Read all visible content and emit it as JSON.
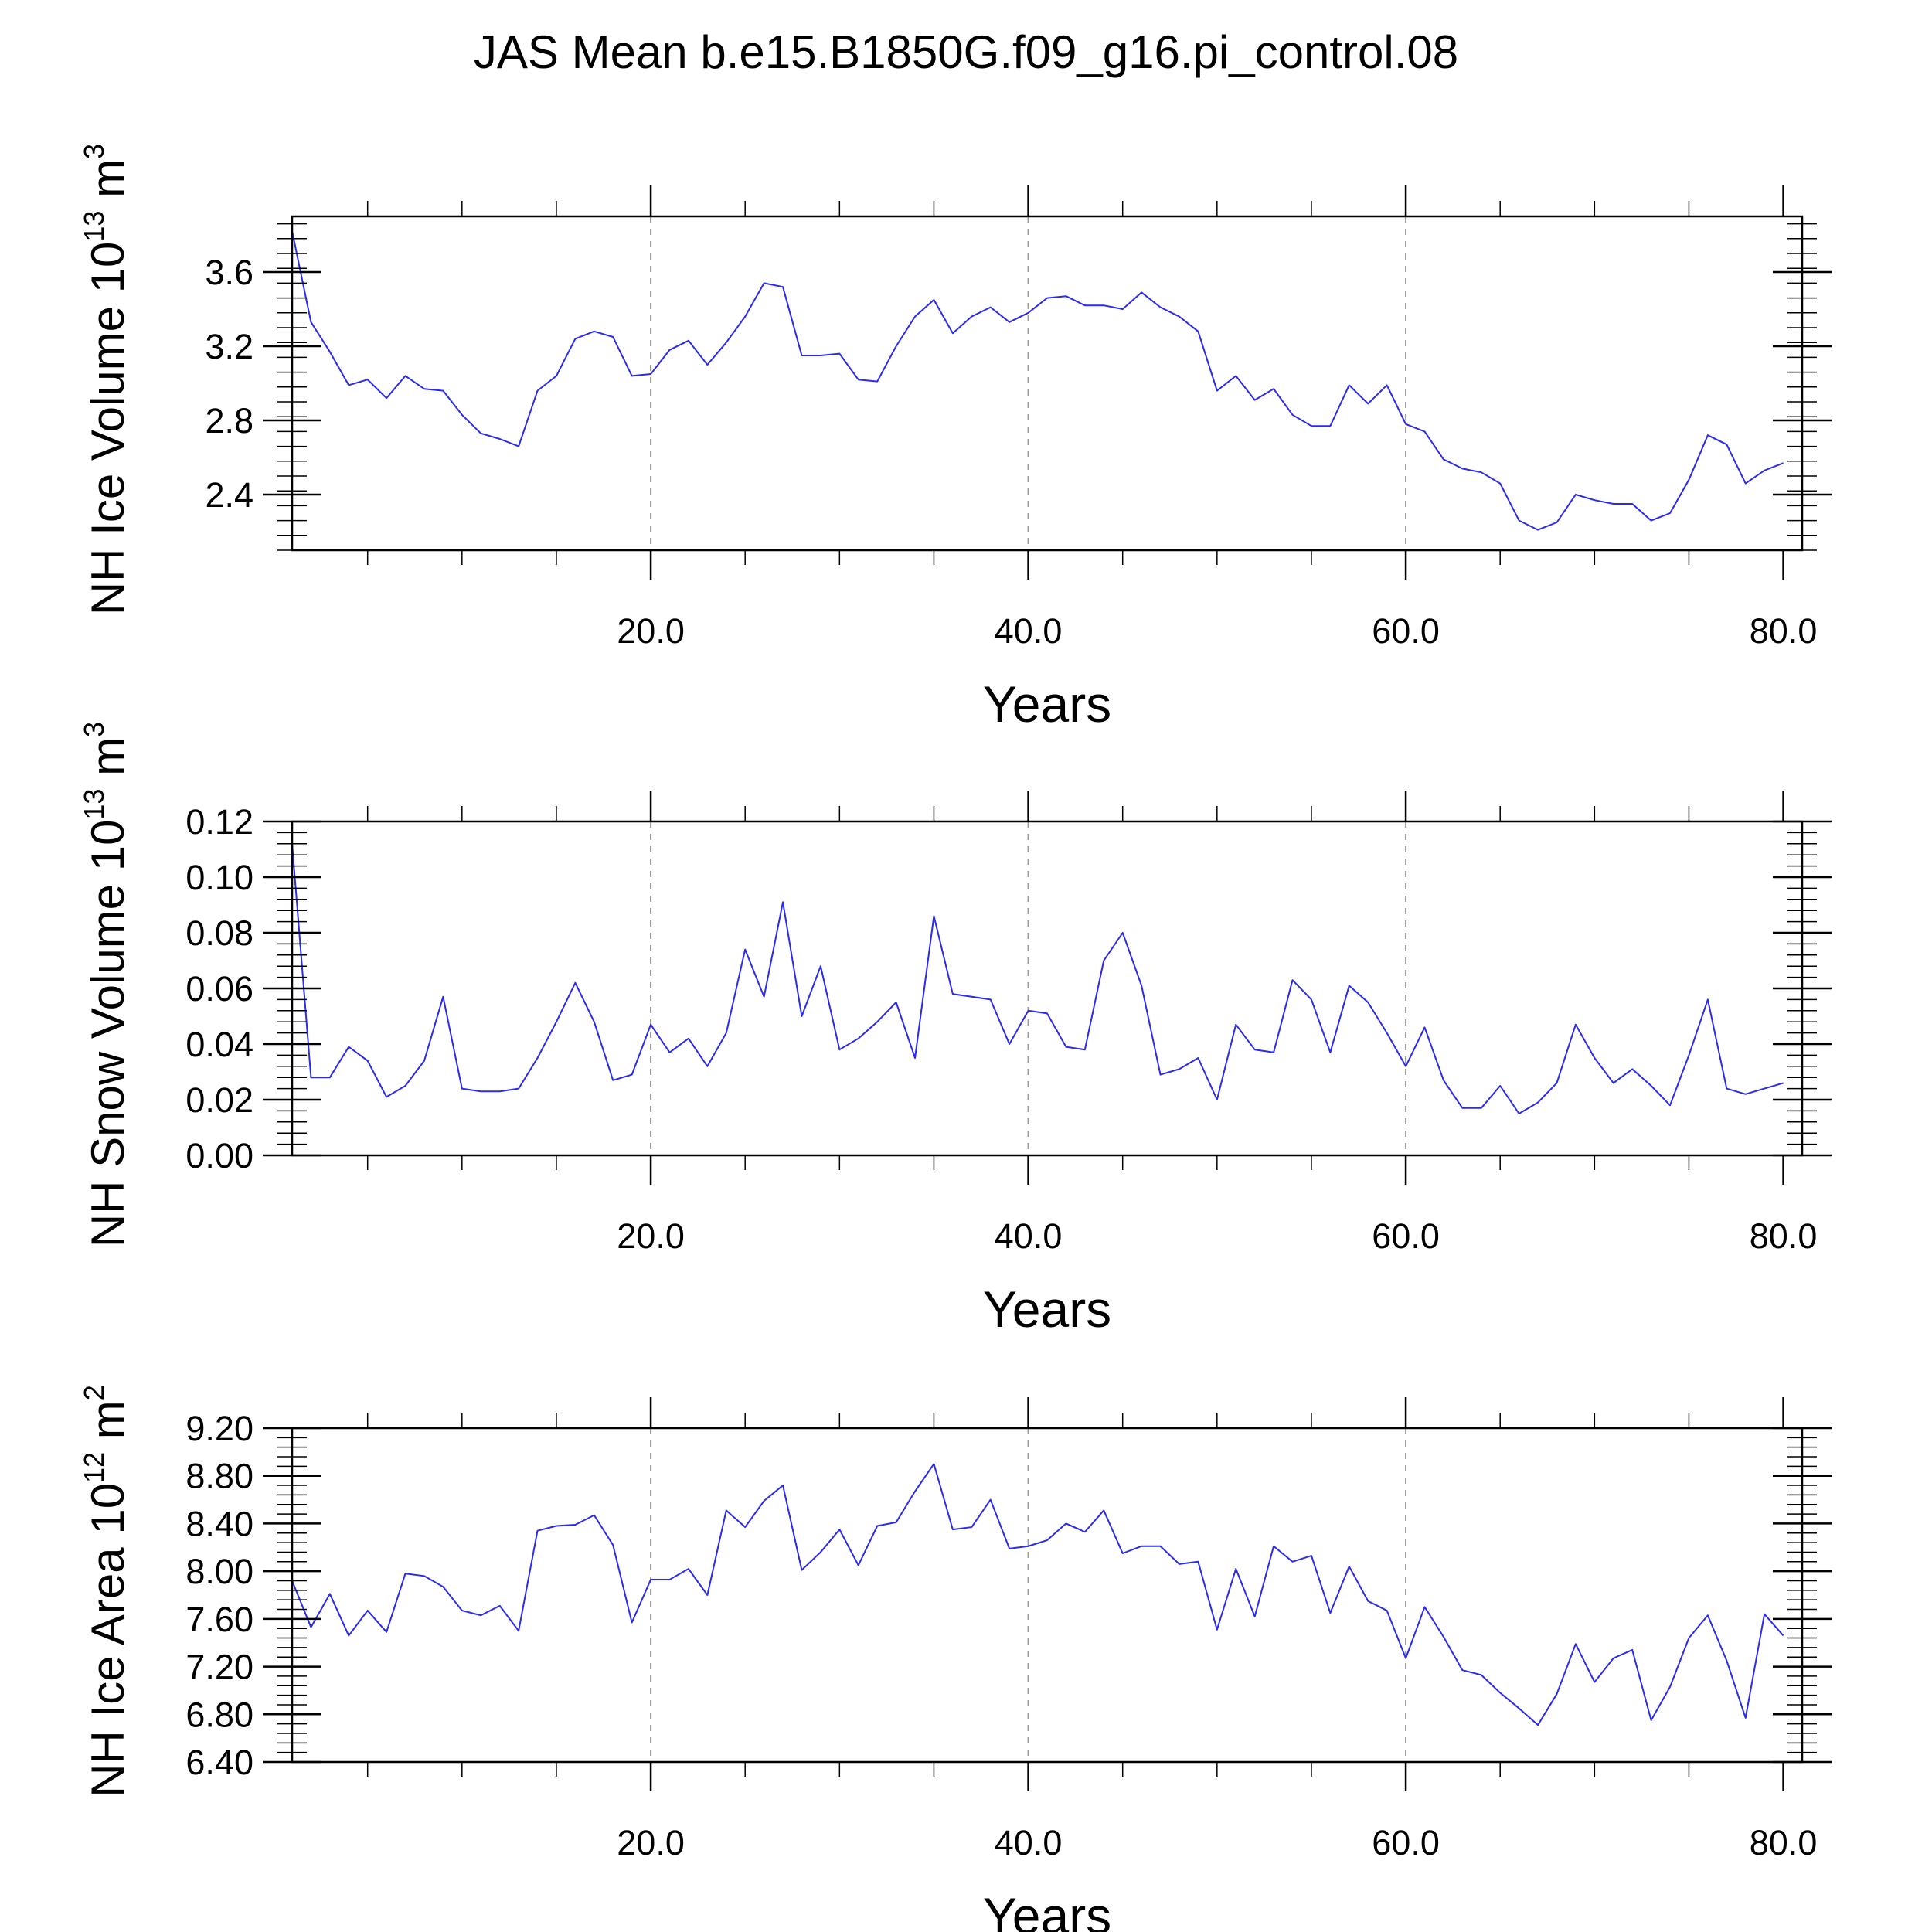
{
  "title": "JAS Mean b.e15.B1850G.f09_g16.pi_control.08",
  "colors": {
    "line": "#2a2af0",
    "axes": "#000000",
    "grid": "#9a9a9a",
    "background": "#ffffff"
  },
  "chart_data": [
    {
      "type": "line",
      "id": "ice-volume",
      "ylabel_main": "NH Ice Volume 10",
      "ylabel_sup": "13",
      "ylabel_unit": "m",
      "ylabel_unit_sup": "3",
      "xlabel": "Years",
      "xlim": [
        1,
        81
      ],
      "ylim": [
        2.1,
        3.9
      ],
      "xticks": [
        20,
        40,
        60,
        80
      ],
      "xtick_labels": [
        "20.0",
        "40.0",
        "60.0",
        "80.0"
      ],
      "yticks": [
        2.4,
        2.8,
        3.2,
        3.6
      ],
      "ytick_labels": [
        "2.4",
        "2.8",
        "3.2",
        "3.6"
      ],
      "yminor_step": 0.08,
      "grid_vertical_at": [
        20,
        40,
        60
      ],
      "series": [
        {
          "name": "NH Ice Volume",
          "x_start": 1,
          "values": [
            3.82,
            3.33,
            3.17,
            2.99,
            3.02,
            2.92,
            3.04,
            2.97,
            2.96,
            2.83,
            2.73,
            2.7,
            2.66,
            2.96,
            3.04,
            3.24,
            3.28,
            3.25,
            3.04,
            3.05,
            3.18,
            3.23,
            3.1,
            3.22,
            3.36,
            3.54,
            3.52,
            3.15,
            3.15,
            3.16,
            3.02,
            3.01,
            3.2,
            3.36,
            3.45,
            3.27,
            3.36,
            3.41,
            3.33,
            3.38,
            3.46,
            3.47,
            3.42,
            3.42,
            3.4,
            3.49,
            3.41,
            3.36,
            3.28,
            2.96,
            3.04,
            2.91,
            2.97,
            2.83,
            2.77,
            2.77,
            2.99,
            2.89,
            2.99,
            2.78,
            2.74,
            2.59,
            2.54,
            2.52,
            2.46,
            2.26,
            2.21,
            2.25,
            2.4,
            2.37,
            2.35,
            2.35,
            2.26,
            2.3,
            2.48,
            2.72,
            2.67,
            2.46,
            2.53,
            2.57
          ]
        }
      ]
    },
    {
      "type": "line",
      "id": "snow-volume",
      "ylabel_main": "NH Snow Volume 10",
      "ylabel_sup": "13",
      "ylabel_unit": "m",
      "ylabel_unit_sup": "3",
      "xlabel": "Years",
      "xlim": [
        1,
        81
      ],
      "ylim": [
        0.0,
        0.12
      ],
      "xticks": [
        20,
        40,
        60,
        80
      ],
      "xtick_labels": [
        "20.0",
        "40.0",
        "60.0",
        "80.0"
      ],
      "yticks": [
        0.0,
        0.02,
        0.04,
        0.06,
        0.08,
        0.1,
        0.12
      ],
      "ytick_labels": [
        "0.00",
        "0.02",
        "0.04",
        "0.06",
        "0.08",
        "0.10",
        "0.12"
      ],
      "yminor_step": 0.004,
      "grid_vertical_at": [
        20,
        40,
        60
      ],
      "series": [
        {
          "name": "NH Snow Volume",
          "x_start": 1,
          "values": [
            0.112,
            0.028,
            0.028,
            0.039,
            0.034,
            0.021,
            0.025,
            0.034,
            0.057,
            0.024,
            0.023,
            0.023,
            0.024,
            0.035,
            0.048,
            0.062,
            0.048,
            0.027,
            0.029,
            0.047,
            0.037,
            0.042,
            0.032,
            0.044,
            0.074,
            0.057,
            0.091,
            0.05,
            0.068,
            0.038,
            0.042,
            0.048,
            0.055,
            0.035,
            0.086,
            0.058,
            0.057,
            0.056,
            0.04,
            0.052,
            0.051,
            0.039,
            0.038,
            0.07,
            0.08,
            0.061,
            0.029,
            0.031,
            0.035,
            0.02,
            0.047,
            0.038,
            0.037,
            0.063,
            0.056,
            0.037,
            0.061,
            0.055,
            0.044,
            0.032,
            0.046,
            0.027,
            0.017,
            0.017,
            0.025,
            0.015,
            0.019,
            0.026,
            0.047,
            0.035,
            0.026,
            0.031,
            0.025,
            0.018,
            0.036,
            0.056,
            0.024,
            0.022,
            0.024,
            0.026
          ]
        }
      ]
    },
    {
      "type": "line",
      "id": "ice-area",
      "ylabel_main": "NH Ice Area 10",
      "ylabel_sup": "12",
      "ylabel_unit": "m",
      "ylabel_unit_sup": "2",
      "xlabel": "Years",
      "xlim": [
        1,
        81
      ],
      "ylim": [
        6.4,
        9.2
      ],
      "xticks": [
        20,
        40,
        60,
        80
      ],
      "xtick_labels": [
        "20.0",
        "40.0",
        "60.0",
        "80.0"
      ],
      "yticks": [
        6.4,
        6.8,
        7.2,
        7.6,
        8.0,
        8.4,
        8.8,
        9.2
      ],
      "ytick_labels": [
        "6.40",
        "6.80",
        "7.20",
        "7.60",
        "8.00",
        "8.40",
        "8.80",
        "9.20"
      ],
      "yminor_step": 0.08,
      "grid_vertical_at": [
        20,
        40,
        60
      ],
      "series": [
        {
          "name": "NH Ice Area",
          "x_start": 1,
          "values": [
            7.92,
            7.53,
            7.81,
            7.46,
            7.67,
            7.49,
            7.98,
            7.96,
            7.87,
            7.67,
            7.63,
            7.71,
            7.5,
            8.34,
            8.38,
            8.39,
            8.47,
            8.22,
            7.57,
            7.93,
            7.93,
            8.02,
            7.8,
            8.51,
            8.37,
            8.59,
            8.72,
            8.01,
            8.16,
            8.35,
            8.05,
            8.38,
            8.41,
            8.67,
            8.9,
            8.35,
            8.37,
            8.6,
            8.19,
            8.21,
            8.26,
            8.4,
            8.33,
            8.51,
            8.15,
            8.21,
            8.21,
            8.06,
            8.08,
            7.51,
            8.02,
            7.62,
            8.21,
            8.08,
            8.13,
            7.65,
            8.04,
            7.75,
            7.67,
            7.27,
            7.7,
            7.45,
            7.17,
            7.13,
            6.98,
            6.85,
            6.71,
            6.97,
            7.39,
            7.07,
            7.27,
            7.34,
            6.75,
            7.03,
            7.44,
            7.63,
            7.25,
            6.77,
            7.64,
            7.46
          ]
        }
      ]
    }
  ]
}
